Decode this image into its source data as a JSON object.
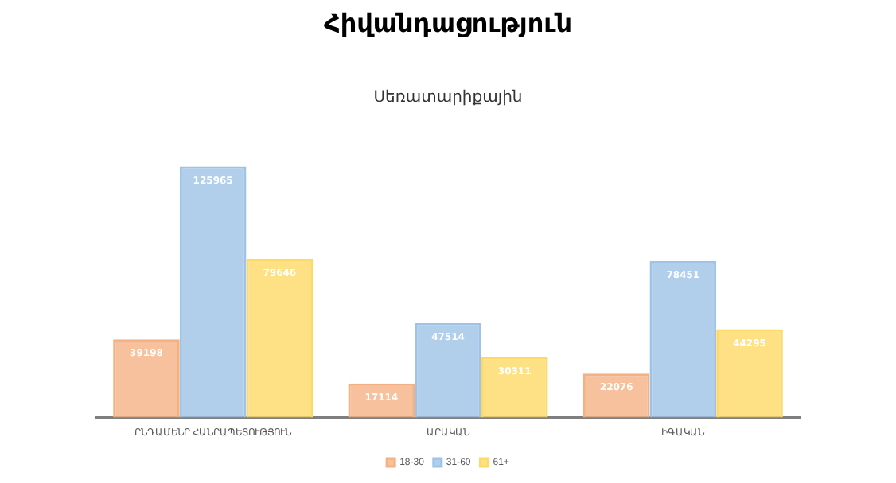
{
  "chart_data": {
    "type": "bar",
    "title": "Հիվանդացություն",
    "subtitle": "Սեռատարիքային",
    "categories": [
      "ԸՆԴԱՄԵՆԸ ՀԱՆՐԱՊԵՏՈՒԹՅՈՒՆ",
      "ԱՐԱԿԱՆ",
      "ԻԳԱԿԱՆ"
    ],
    "series": [
      {
        "name": "18-30",
        "color": "#f4b183",
        "values": [
          39198,
          17114,
          22076
        ]
      },
      {
        "name": "31-60",
        "color": "#9dc3e6",
        "values": [
          125965,
          47514,
          78451
        ]
      },
      {
        "name": "61+",
        "color": "#ffd966",
        "values": [
          79646,
          30311,
          44295
        ]
      }
    ],
    "data_labels": true,
    "legend": "bottom",
    "grid": false
  }
}
